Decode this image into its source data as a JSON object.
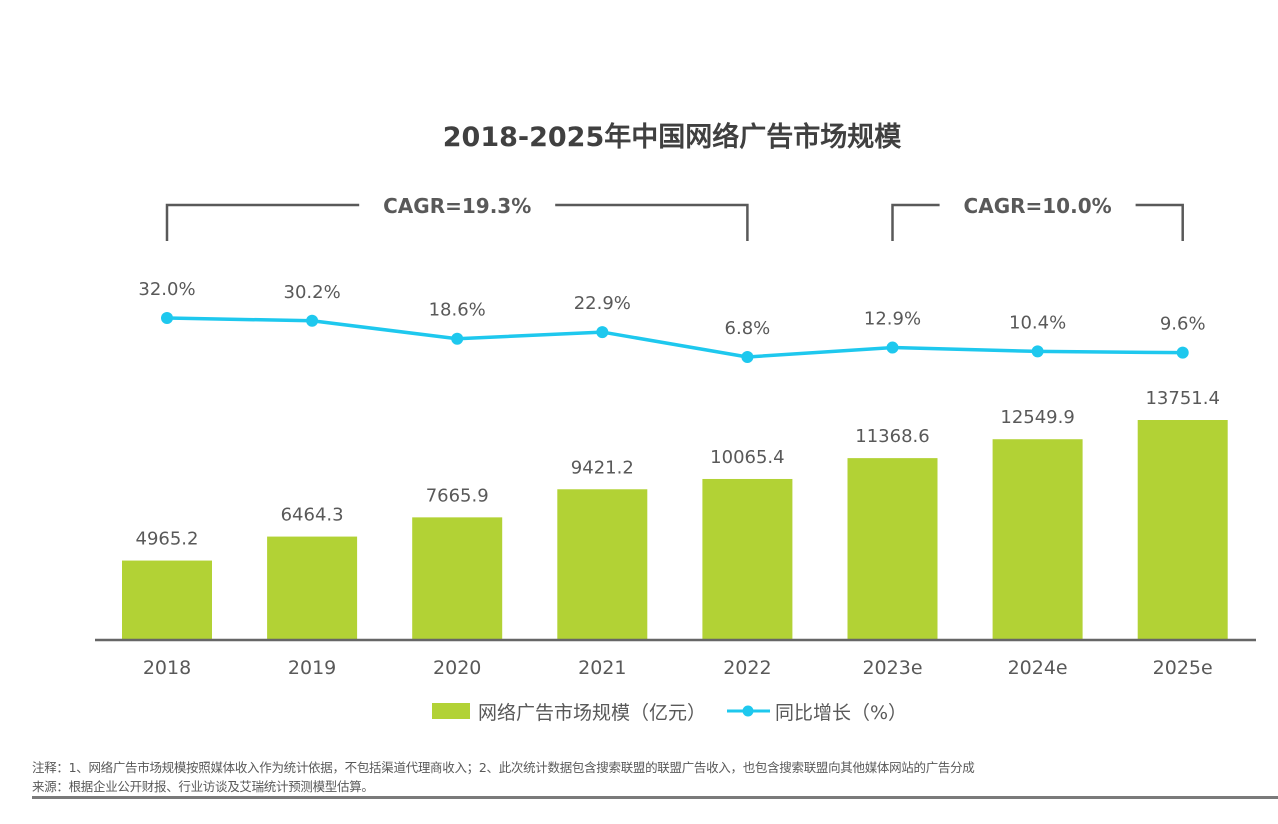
{
  "chart_data": {
    "type": "bar",
    "title": "2018-2025年中国网络广告市场规模",
    "categories": [
      "2018",
      "2019",
      "2020",
      "2021",
      "2022",
      "2023e",
      "2024e",
      "2025e"
    ],
    "series": [
      {
        "name": "网络广告市场规模（亿元）",
        "type": "bar",
        "color": "#b2d235",
        "values": [
          4965.2,
          6464.3,
          7665.9,
          9421.2,
          10065.4,
          11368.6,
          12549.9,
          13751.4
        ],
        "labels": [
          "4965.2",
          "6464.3",
          "7665.9",
          "9421.2",
          "10065.4",
          "11368.6",
          "12549.9",
          "13751.4"
        ]
      },
      {
        "name": "同比增长（%）",
        "type": "line",
        "color": "#1ec8ee",
        "values": [
          32.0,
          30.2,
          18.6,
          22.9,
          6.8,
          12.9,
          10.4,
          9.6
        ],
        "labels": [
          "32.0%",
          "30.2%",
          "18.6%",
          "22.9%",
          "6.8%",
          "12.9%",
          "10.4%",
          "9.6%"
        ]
      }
    ],
    "annotations": [
      {
        "text": "CAGR=19.3%",
        "from": "2018",
        "to": "2022"
      },
      {
        "text": "CAGR=10.0%",
        "from": "2023e",
        "to": "2025e"
      }
    ],
    "xlabel": "",
    "ylabel": "",
    "grid": false,
    "legend": "bottom-center",
    "legend_labels": [
      "网络广告市场规模（亿元）",
      "同比增长（%）"
    ]
  },
  "notes": {
    "note": "注释：1、网络广告市场规模按照媒体收入作为统计依据，不包括渠道代理商收入；2、此次统计数据包含搜索联盟的联盟广告收入，也包含搜索联盟向其他媒体网站的广告分成",
    "source": "来源：根据企业公开财报、行业访谈及艾瑞统计预测模型估算。"
  },
  "colors": {
    "bar": "#b2d235",
    "line": "#1ec8ee",
    "axis": "#666666",
    "bracket": "#595959"
  }
}
